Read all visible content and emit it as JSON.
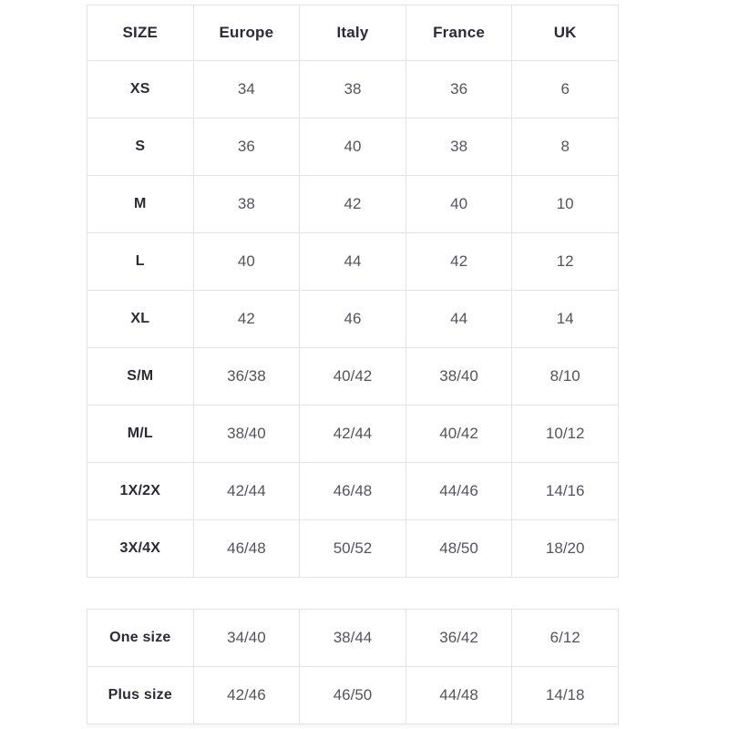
{
  "size_chart": {
    "headers": [
      "SIZE",
      "Europe",
      "Italy",
      "France",
      "UK"
    ],
    "rows": [
      {
        "size": "XS",
        "values": [
          "34",
          "38",
          "36",
          "6"
        ]
      },
      {
        "size": "S",
        "values": [
          "36",
          "40",
          "38",
          "8"
        ]
      },
      {
        "size": "M",
        "values": [
          "38",
          "42",
          "40",
          "10"
        ]
      },
      {
        "size": "L",
        "values": [
          "40",
          "44",
          "42",
          "12"
        ]
      },
      {
        "size": "XL",
        "values": [
          "42",
          "46",
          "44",
          "14"
        ]
      },
      {
        "size": "S/M",
        "values": [
          "36/38",
          "40/42",
          "38/40",
          "8/10"
        ]
      },
      {
        "size": "M/L",
        "values": [
          "38/40",
          "42/44",
          "40/42",
          "10/12"
        ]
      },
      {
        "size": "1X/2X",
        "values": [
          "42/44",
          "46/48",
          "44/46",
          "14/16"
        ]
      },
      {
        "size": "3X/4X",
        "values": [
          "46/48",
          "50/52",
          "48/50",
          "18/20"
        ]
      }
    ]
  },
  "special_sizes": {
    "rows": [
      {
        "size": "One size",
        "values": [
          "34/40",
          "38/44",
          "36/42",
          "6/12"
        ]
      },
      {
        "size": "Plus size",
        "values": [
          "42/46",
          "46/50",
          "44/48",
          "14/18"
        ]
      }
    ]
  },
  "colors": {
    "background": "#ffffff",
    "border": "#e3e3e3",
    "header_text": "#2b2b34",
    "cell_text": "#54545c"
  }
}
